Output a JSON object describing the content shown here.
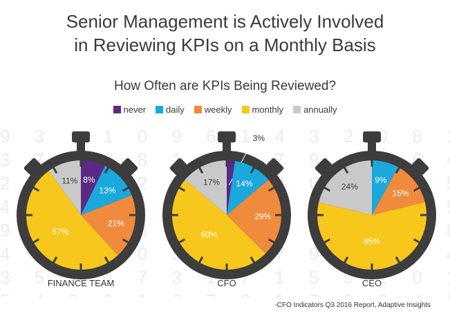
{
  "title_line1": "Senior Management is Actively Involved",
  "title_line2": "in Reviewing KPIs on a Monthly Basis",
  "subtitle": "How Often are KPIs Being Reviewed?",
  "source": "-CFO Indicators Q3 2016 Report, Adaptive Insights",
  "background_digits": [
    "9 3 1 1 0 9 6 1 4 3 2 0 8 1 5 0 4 1 5 9",
    "3 7 8 7 8 1 0 3 7 9 0 7 6 4 9 1 2 6 4 3",
    "2 8 3 6 2 5 0 9 3 6 4 8 3 5 1 5 7 4 2 8",
    "4 9 8 0 4 2 8 2 7 6 0 5 1 9 2 7 4 6 8 2",
    "9 7 0 4 6 7 0 2 1 0 6 3 4 8 5 6 9 4 8 5",
    "4 3 2 5 0 5 8 1 7 9 1 3 5 4 9 2 5 1 8 4",
    "3 5 2 4 7 3 1 7 1 5 9 2 0 1 9 8 7 4 1 8",
    "5 4 8 6 1 6 7 3 1 7 2 3 4 8 6 1 8 5 2 3"
  ],
  "chart_data": {
    "type": "pie",
    "title": "How Often are KPIs Being Reviewed?",
    "legend": [
      {
        "name": "never",
        "color": "#5b2a86"
      },
      {
        "name": "daily",
        "color": "#1ba8dd"
      },
      {
        "name": "weekly",
        "color": "#f08a3c"
      },
      {
        "name": "monthly",
        "color": "#f7c71c"
      },
      {
        "name": "annually",
        "color": "#c9c9c9"
      }
    ],
    "legend_placement": "top-center",
    "charts": [
      {
        "label": "FINANCE TEAM",
        "slices": [
          {
            "name": "never",
            "value": 8,
            "label": "8%"
          },
          {
            "name": "daily",
            "value": 13,
            "label": "13%"
          },
          {
            "name": "weekly",
            "value": 21,
            "label": "21%"
          },
          {
            "name": "monthly",
            "value": 57,
            "label": "57%"
          },
          {
            "name": "annually",
            "value": 11,
            "label": "11%"
          }
        ]
      },
      {
        "label": "CFO",
        "slices": [
          {
            "name": "never",
            "value": 3,
            "label": "3%"
          },
          {
            "name": "daily",
            "value": 14,
            "label": "14%"
          },
          {
            "name": "weekly",
            "value": 29,
            "label": "29%"
          },
          {
            "name": "monthly",
            "value": 60,
            "label": "60%"
          },
          {
            "name": "annually",
            "value": 17,
            "label": "17%"
          }
        ]
      },
      {
        "label": "CEO",
        "slices": [
          {
            "name": "daily",
            "value": 9,
            "label": "9%"
          },
          {
            "name": "weekly",
            "value": 15,
            "label": "15%"
          },
          {
            "name": "monthly",
            "value": 65,
            "label": "65%"
          },
          {
            "name": "annually",
            "value": 24,
            "label": "24%"
          }
        ]
      }
    ]
  }
}
